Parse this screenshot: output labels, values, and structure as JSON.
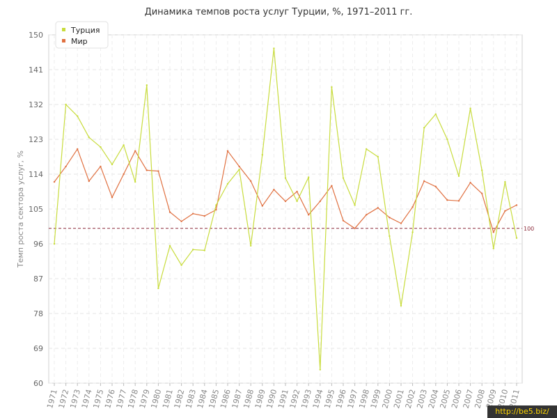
{
  "chart_data": {
    "type": "line",
    "title": "Динамика темпов роста услуг Турции, %, 1971–2011 гг.",
    "ylabel": "Темп роста сектора услуг, %",
    "xlabel": "",
    "ylim": [
      60,
      150
    ],
    "yticks": [
      "60",
      "69",
      "78",
      "87",
      "96",
      "105",
      "114",
      "123",
      "132",
      "141",
      "150"
    ],
    "x": [
      "1971",
      "1972",
      "1973",
      "1974",
      "1975",
      "1976",
      "1977",
      "1978",
      "1979",
      "1980",
      "1981",
      "1982",
      "1983",
      "1984",
      "1985",
      "1986",
      "1987",
      "1988",
      "1989",
      "1990",
      "1991",
      "1992",
      "1993",
      "1994",
      "1995",
      "1996",
      "1997",
      "1998",
      "1999",
      "2000",
      "2001",
      "2002",
      "2003",
      "2004",
      "2005",
      "2006",
      "2007",
      "2008",
      "2009",
      "2010",
      "2011"
    ],
    "series": [
      {
        "name": "Турция",
        "color": "#c8dc3c",
        "values": [
          96.0,
          132.0,
          129.0,
          123.5,
          121.0,
          116.5,
          121.5,
          112.0,
          137.0,
          84.5,
          95.5,
          90.5,
          94.5,
          94.3,
          106.0,
          111.5,
          115.2,
          95.5,
          119.0,
          146.5,
          113.0,
          107.0,
          113.2,
          63.5,
          136.5,
          113.0,
          106.0,
          120.5,
          118.5,
          98.0,
          80.0,
          99.0,
          126.0,
          129.5,
          123.0,
          113.5,
          131.0,
          115.0,
          94.8,
          112.0,
          97.5
        ]
      },
      {
        "name": "Мир",
        "color": "#e07040",
        "values": [
          112.0,
          116.0,
          120.5,
          112.2,
          116.0,
          108.0,
          114.0,
          120.0,
          115.0,
          114.8,
          104.2,
          101.8,
          103.8,
          103.2,
          104.8,
          120.0,
          116.0,
          112.2,
          105.8,
          110.0,
          107.0,
          109.5,
          103.5,
          107.0,
          111.0,
          102.0,
          100.0,
          103.5,
          105.3,
          102.8,
          101.3,
          105.5,
          112.2,
          110.8,
          107.3,
          107.1,
          111.8,
          109.0,
          99.0,
          104.5,
          106.0
        ]
      }
    ],
    "reference_line": {
      "value": 100,
      "label": "100",
      "color": "#8b2a3a"
    },
    "grid": true,
    "legend": "top-left"
  },
  "watermark": "http://be5.biz/"
}
